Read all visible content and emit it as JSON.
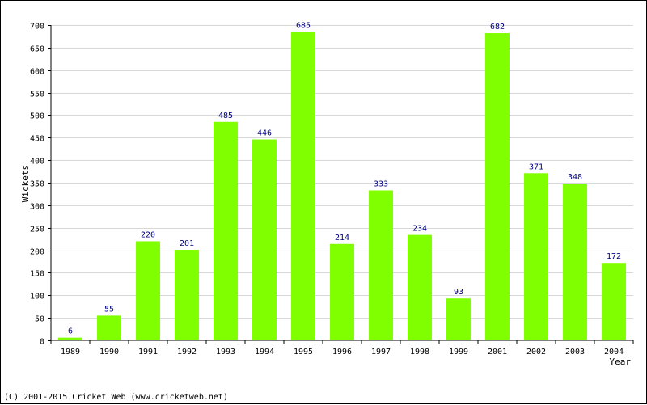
{
  "chart_data": {
    "type": "bar",
    "title": "",
    "xlabel": "Year",
    "ylabel": "Wickets",
    "categories": [
      "1989",
      "1990",
      "1991",
      "1992",
      "1993",
      "1994",
      "1995",
      "1996",
      "1997",
      "1998",
      "1999",
      "2001",
      "2002",
      "2003",
      "2004"
    ],
    "values": [
      6,
      55,
      220,
      201,
      485,
      446,
      685,
      214,
      333,
      234,
      93,
      682,
      371,
      348,
      172
    ],
    "ylim": [
      0,
      700
    ],
    "yticks": [
      0,
      50,
      100,
      150,
      200,
      250,
      300,
      350,
      400,
      450,
      500,
      550,
      600,
      650,
      700
    ],
    "grid": true,
    "legend": "none",
    "bar_color": "#80ff00",
    "label_color": "#000080",
    "grid_color": "#d8d8d8"
  },
  "footer": {
    "credit": "(C) 2001-2015 Cricket Web (www.cricketweb.net)"
  }
}
